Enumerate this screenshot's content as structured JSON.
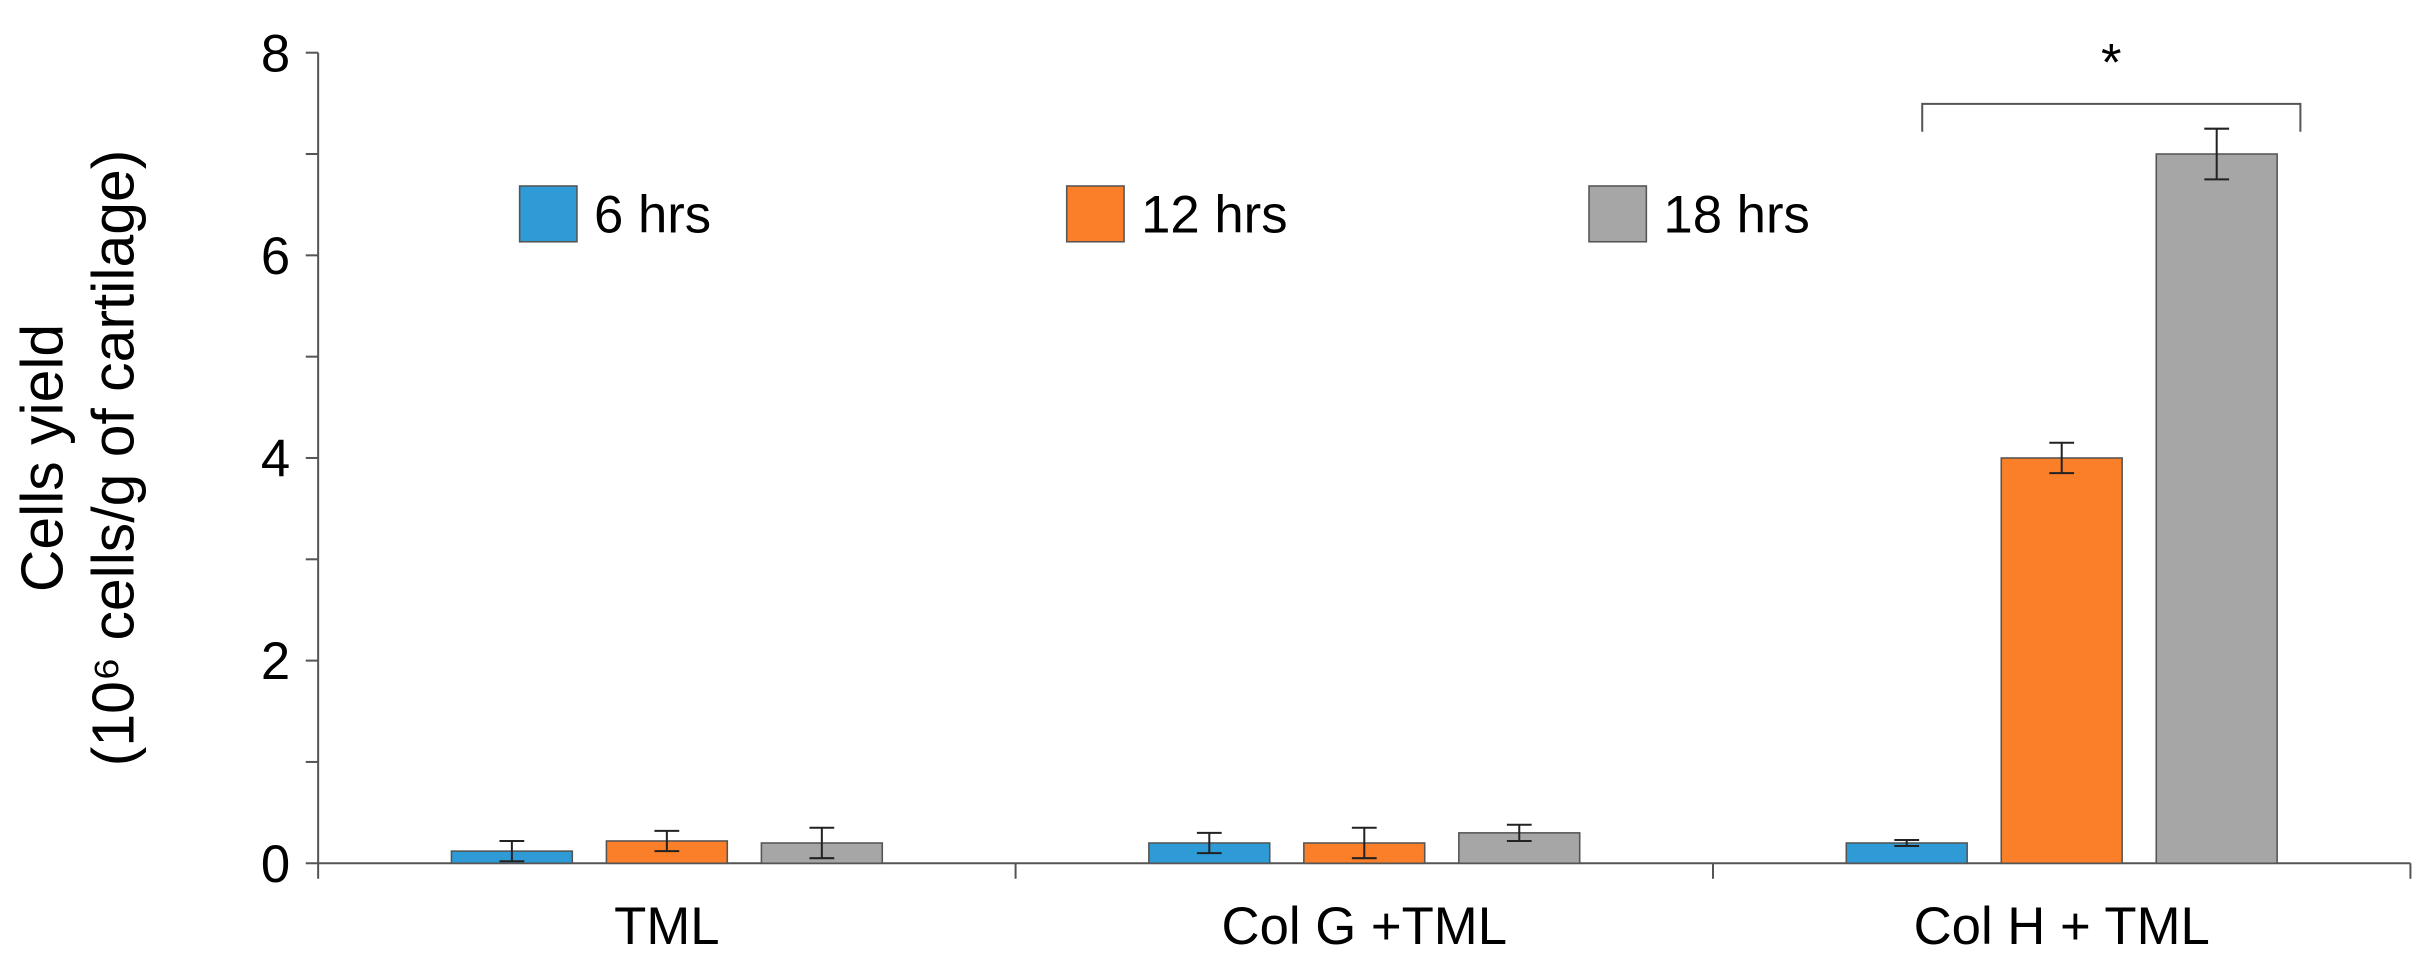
{
  "chart_data": {
    "type": "bar",
    "ylabel": [
      "Cells yield",
      "(10⁶ cells/g of cartilage)"
    ],
    "categories": [
      "TML",
      "Col G +TML",
      "Col H + TML"
    ],
    "series": [
      {
        "name": "6 hrs",
        "color": "#2e9bd6",
        "values": [
          0.12,
          0.2,
          0.2
        ],
        "errors": [
          0.1,
          0.1,
          0.03
        ]
      },
      {
        "name": "12 hrs",
        "color": "#fb7f28",
        "values": [
          0.22,
          0.2,
          4.0
        ],
        "errors": [
          0.1,
          0.15,
          0.15
        ]
      },
      {
        "name": "18 hrs",
        "color": "#a6a6a6",
        "values": [
          0.2,
          0.3,
          7.0
        ],
        "errors": [
          0.15,
          0.08,
          0.25
        ]
      }
    ],
    "ylim": [
      0,
      8
    ],
    "yticks": [
      0,
      2,
      4,
      6,
      8
    ],
    "yminor_ticks": [
      1,
      3,
      5,
      7
    ],
    "legend": "top",
    "annotation": "*"
  }
}
